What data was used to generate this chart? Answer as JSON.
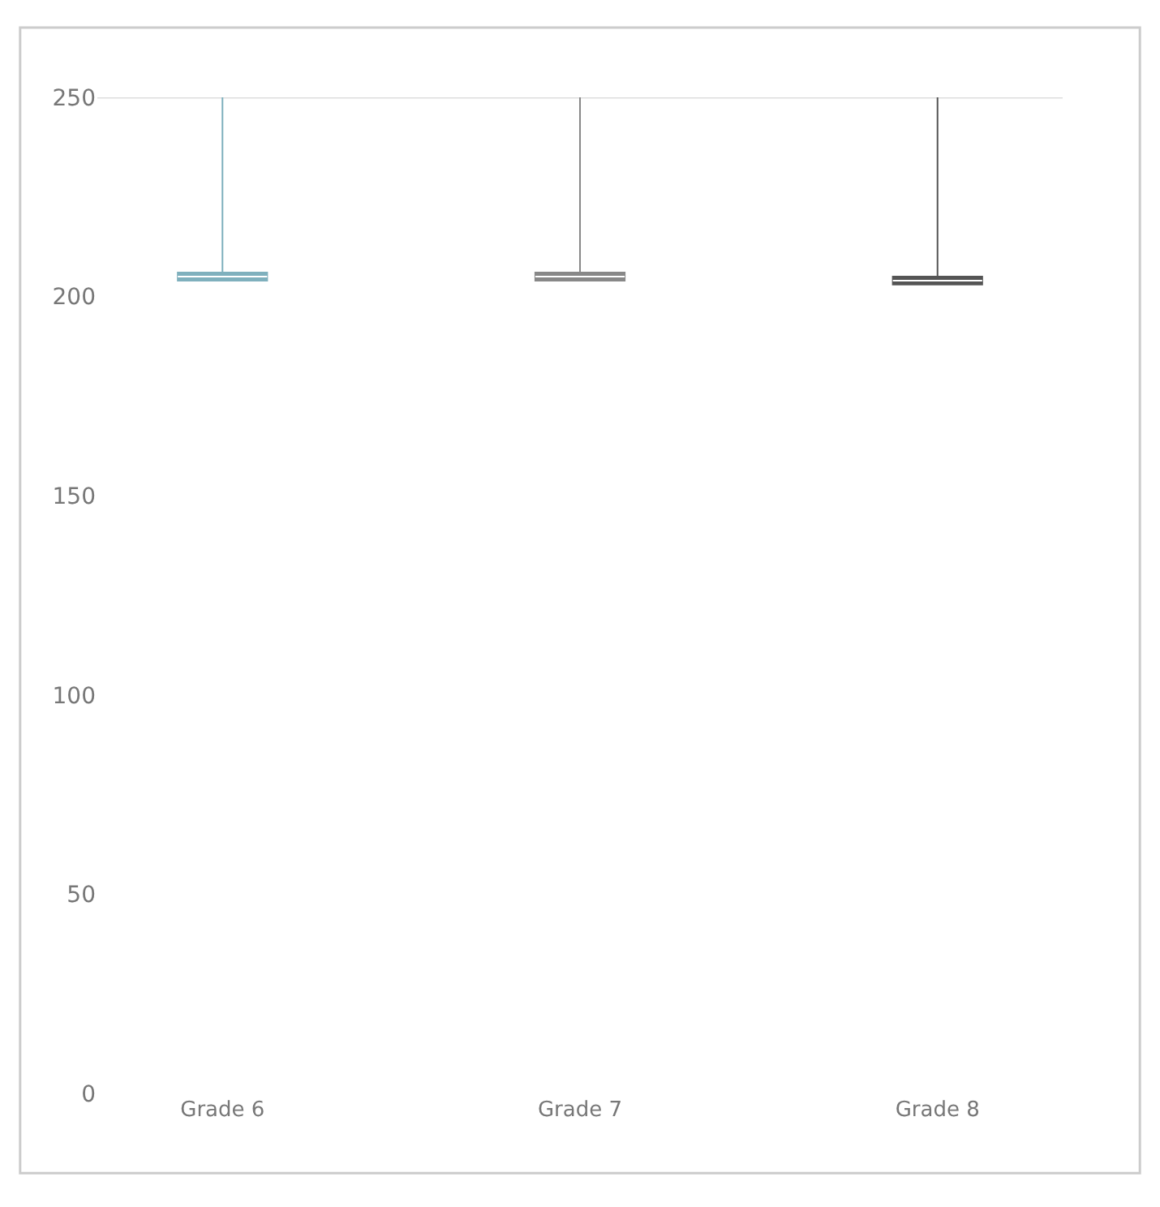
{
  "chart_data": {
    "type": "box",
    "categories": [
      "Grade 6",
      "Grade 7",
      "Grade 8"
    ],
    "colors": [
      "#7fb0bd",
      "#888888",
      "#555555"
    ],
    "boxes": [
      {
        "low": 204,
        "q1": 204,
        "median": 205,
        "q3": 206,
        "high": 250
      },
      {
        "low": 204,
        "q1": 204,
        "median": 205,
        "q3": 206,
        "high": 250
      },
      {
        "low": 203,
        "q1": 203,
        "median": 204,
        "q3": 205,
        "high": 250
      }
    ],
    "ylim": [
      0,
      250
    ],
    "yticks": [
      0,
      50,
      100,
      150,
      200,
      250
    ],
    "ref_lines": [
      {
        "axis": "y",
        "value": 250,
        "color": "#dddddd"
      }
    ],
    "grid": false,
    "legend": false
  }
}
